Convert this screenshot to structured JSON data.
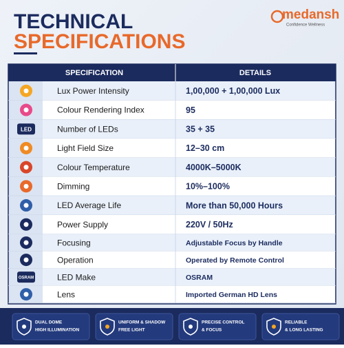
{
  "header": {
    "title_line1": "TECHNICAL",
    "title_line2": "SPECIFICATIONS",
    "brand": "medansh",
    "brand_tagline": "Confidence Wellness"
  },
  "table": {
    "columns": [
      "SPECIFICATION",
      "DETAILS"
    ],
    "rows": [
      {
        "label": "Lux Power Intensity",
        "value": "1,00,000 + 1,00,000 Lux"
      },
      {
        "label": "Colour Rendering Index",
        "value": "95"
      },
      {
        "label": "Number of LEDs",
        "value": "35 + 35",
        "icon_text": "LED"
      },
      {
        "label": "Light Field Size",
        "value": "12–30 cm"
      },
      {
        "label": "Colour Temperature",
        "value": "4000K–5000K"
      },
      {
        "label": "Dimming",
        "value": "10%–100%"
      },
      {
        "label": "LED Average Life",
        "value": "More than 50,000 Hours"
      },
      {
        "label": "Power Supply",
        "value": "220V / 50Hz"
      },
      {
        "label": "Focusing",
        "value": "Adjustable Focus by Handle"
      },
      {
        "label": "Operation",
        "value": "Operated by Remote Control"
      },
      {
        "label": "LED Make",
        "value": "OSRAM",
        "icon_text": "OSRAM"
      },
      {
        "label": "Lens",
        "value": "Imported German HD Lens"
      }
    ]
  },
  "footer": {
    "badges": [
      {
        "lines": [
          "DUAL DOME",
          "HIGH ILLUMINATION"
        ]
      },
      {
        "lines": [
          "UNIFORM & SHADOW",
          "FREE LIGHT"
        ]
      },
      {
        "lines": [
          "PRECISE CONTROL",
          "& FOCUS"
        ]
      },
      {
        "lines": [
          "RELIABLE",
          "& LONG LASTING"
        ]
      }
    ]
  }
}
